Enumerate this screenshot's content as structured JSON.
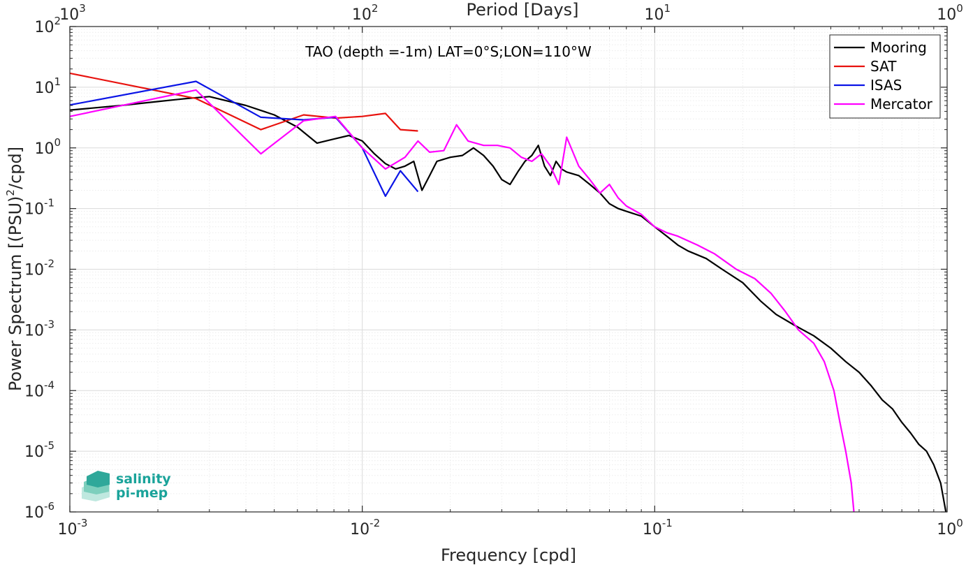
{
  "chart_data": {
    "type": "line",
    "title": "TAO (depth =-1m) LAT=0°S;LON=110°W",
    "xlabel": "Frequency [cpd]",
    "ylabel": "Power Spectrum [(PSU)^2/cpd]",
    "top_xlabel": "Period [Days]",
    "xscale": "log",
    "yscale": "log",
    "xlim": [
      0.001,
      1
    ],
    "ylim": [
      1e-06,
      100
    ],
    "grid": true,
    "legend_position": "top-right",
    "x_ticks": [
      {
        "base": "10",
        "exp": "-3"
      },
      {
        "base": "10",
        "exp": "-2"
      },
      {
        "base": "10",
        "exp": "-1"
      },
      {
        "base": "10",
        "exp": "0"
      }
    ],
    "top_ticks": [
      {
        "base": "10",
        "exp": "3"
      },
      {
        "base": "10",
        "exp": "2"
      },
      {
        "base": "10",
        "exp": "1"
      },
      {
        "base": "10",
        "exp": "0"
      }
    ],
    "y_ticks": [
      {
        "base": "10",
        "exp": "2"
      },
      {
        "base": "10",
        "exp": "1"
      },
      {
        "base": "10",
        "exp": "0"
      },
      {
        "base": "10",
        "exp": "-1"
      },
      {
        "base": "10",
        "exp": "-2"
      },
      {
        "base": "10",
        "exp": "-3"
      },
      {
        "base": "10",
        "exp": "-4"
      },
      {
        "base": "10",
        "exp": "-5"
      },
      {
        "base": "10",
        "exp": "-6"
      }
    ],
    "series": [
      {
        "name": "Mooring",
        "color": "#000000",
        "x": [
          0.001,
          0.0015,
          0.002,
          0.0025,
          0.003,
          0.004,
          0.005,
          0.006,
          0.007,
          0.008,
          0.009,
          0.01,
          0.011,
          0.012,
          0.013,
          0.014,
          0.015,
          0.016,
          0.017,
          0.018,
          0.02,
          0.022,
          0.024,
          0.026,
          0.028,
          0.03,
          0.032,
          0.034,
          0.036,
          0.038,
          0.04,
          0.042,
          0.044,
          0.046,
          0.048,
          0.05,
          0.055,
          0.06,
          0.065,
          0.07,
          0.075,
          0.08,
          0.09,
          0.1,
          0.11,
          0.12,
          0.13,
          0.15,
          0.17,
          0.2,
          0.23,
          0.26,
          0.3,
          0.35,
          0.4,
          0.45,
          0.5,
          0.55,
          0.6,
          0.65,
          0.7,
          0.75,
          0.8,
          0.85,
          0.9,
          0.95,
          0.99
        ],
        "y": [
          4.2,
          5.0,
          5.8,
          6.5,
          7.0,
          5.0,
          3.5,
          2.2,
          1.2,
          1.4,
          1.6,
          1.3,
          0.8,
          0.55,
          0.45,
          0.5,
          0.6,
          0.2,
          0.35,
          0.6,
          0.7,
          0.75,
          1.0,
          0.75,
          0.5,
          0.3,
          0.25,
          0.4,
          0.6,
          0.75,
          1.1,
          0.5,
          0.35,
          0.6,
          0.45,
          0.4,
          0.35,
          0.25,
          0.18,
          0.12,
          0.1,
          0.09,
          0.075,
          0.05,
          0.035,
          0.025,
          0.02,
          0.015,
          0.01,
          0.006,
          0.003,
          0.0018,
          0.0012,
          0.0008,
          0.0005,
          0.0003,
          0.0002,
          0.00012,
          7e-05,
          5e-05,
          3e-05,
          2e-05,
          1.3e-05,
          1e-05,
          6e-06,
          3e-06,
          1e-06
        ]
      },
      {
        "name": "SAT",
        "color": "#e8120e",
        "x": [
          0.001,
          0.0027,
          0.0045,
          0.0063,
          0.0081,
          0.01,
          0.012,
          0.0135,
          0.0155
        ],
        "y": [
          17.0,
          6.5,
          2.0,
          3.5,
          3.1,
          3.3,
          3.7,
          2.0,
          1.9
        ]
      },
      {
        "name": "ISAS",
        "color": "#0a14e6",
        "x": [
          0.001,
          0.0027,
          0.0045,
          0.0063,
          0.0081,
          0.01,
          0.012,
          0.0135,
          0.0155
        ],
        "y": [
          5.1,
          12.5,
          3.2,
          2.9,
          3.2,
          1.0,
          0.16,
          0.42,
          0.19
        ]
      },
      {
        "name": "Mercator",
        "color": "#ff00ff",
        "x": [
          0.001,
          0.0027,
          0.0045,
          0.0063,
          0.0081,
          0.01,
          0.012,
          0.014,
          0.0155,
          0.017,
          0.019,
          0.021,
          0.023,
          0.026,
          0.029,
          0.032,
          0.035,
          0.038,
          0.041,
          0.044,
          0.047,
          0.05,
          0.055,
          0.06,
          0.065,
          0.07,
          0.075,
          0.08,
          0.09,
          0.1,
          0.11,
          0.12,
          0.14,
          0.16,
          0.19,
          0.22,
          0.25,
          0.28,
          0.31,
          0.35,
          0.38,
          0.41,
          0.43,
          0.45,
          0.47,
          0.48
        ],
        "y": [
          3.3,
          9.0,
          0.8,
          2.8,
          3.3,
          1.0,
          0.45,
          0.7,
          1.3,
          0.85,
          0.9,
          2.4,
          1.3,
          1.1,
          1.1,
          1.0,
          0.7,
          0.6,
          0.8,
          0.5,
          0.25,
          1.5,
          0.5,
          0.3,
          0.18,
          0.25,
          0.15,
          0.11,
          0.08,
          0.05,
          0.04,
          0.035,
          0.025,
          0.018,
          0.01,
          0.007,
          0.004,
          0.002,
          0.001,
          0.0006,
          0.0003,
          0.0001,
          3e-05,
          1e-05,
          3e-06,
          1e-06
        ]
      }
    ]
  },
  "logo": {
    "line1": "salinity",
    "line2": "pi-mep"
  }
}
